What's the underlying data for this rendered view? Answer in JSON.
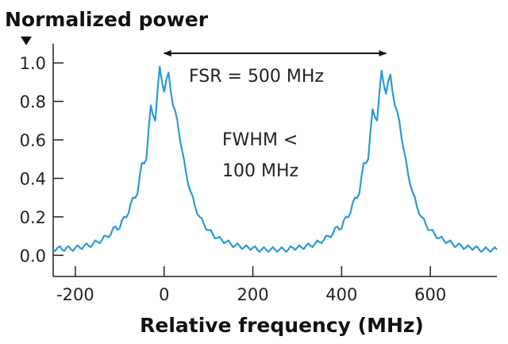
{
  "chart_data": {
    "type": "line",
    "title": "",
    "ylabel": "Normalized power",
    "xlabel": "Relative frequency (MHz)",
    "xlim": [
      -250,
      750
    ],
    "ylim": [
      -0.11,
      1.1
    ],
    "xticks": [
      -200,
      0,
      200,
      400,
      600
    ],
    "yticks": [
      0.0,
      0.2,
      0.4,
      0.6,
      0.8,
      1.0
    ],
    "ytick_labels": [
      "0.0",
      "0.2",
      "0.4",
      "0.6",
      "0.8",
      "1.0"
    ],
    "xtick_labels": [
      "-200",
      "0",
      "200",
      "400",
      "600"
    ],
    "grid": false,
    "series_color": "#2a9ad8",
    "series": [
      {
        "x": [
          -250,
          -240,
          -230,
          -220,
          -210,
          -200,
          -190,
          -180,
          -170,
          -160,
          -150,
          -140,
          -130,
          -120,
          -110,
          -100,
          -90,
          -80,
          -70,
          -60,
          -50,
          -40,
          -30,
          -20,
          -10,
          0,
          10,
          20,
          30,
          40,
          50,
          60,
          70,
          80,
          90,
          100,
          110,
          120,
          130,
          140,
          150,
          160,
          170,
          180,
          190,
          200,
          210,
          220,
          230,
          240,
          250,
          260,
          270,
          280,
          290,
          300,
          310,
          320,
          330,
          340,
          350,
          360,
          370,
          380,
          390,
          400,
          410,
          420,
          430,
          440,
          450,
          460,
          470,
          480,
          490,
          500,
          510,
          520,
          530,
          540,
          550,
          560,
          570,
          580,
          590,
          600,
          610,
          620,
          630,
          640,
          650,
          660,
          670,
          680,
          690,
          700,
          710,
          720,
          730,
          740,
          750
        ],
        "y": [
          0.03,
          0.04,
          0.03,
          0.04,
          0.03,
          0.04,
          0.04,
          0.05,
          0.05,
          0.06,
          0.07,
          0.08,
          0.1,
          0.11,
          0.15,
          0.14,
          0.2,
          0.22,
          0.3,
          0.32,
          0.48,
          0.5,
          0.78,
          0.7,
          0.98,
          0.85,
          0.95,
          0.78,
          0.7,
          0.55,
          0.42,
          0.33,
          0.25,
          0.2,
          0.16,
          0.13,
          0.11,
          0.09,
          0.08,
          0.07,
          0.06,
          0.05,
          0.05,
          0.04,
          0.04,
          0.04,
          0.03,
          0.03,
          0.03,
          0.03,
          0.03,
          0.03,
          0.03,
          0.03,
          0.04,
          0.04,
          0.04,
          0.05,
          0.05,
          0.06,
          0.07,
          0.08,
          0.1,
          0.11,
          0.15,
          0.14,
          0.2,
          0.22,
          0.3,
          0.32,
          0.48,
          0.5,
          0.76,
          0.7,
          0.96,
          0.84,
          0.94,
          0.78,
          0.7,
          0.55,
          0.42,
          0.33,
          0.25,
          0.2,
          0.16,
          0.13,
          0.11,
          0.09,
          0.08,
          0.07,
          0.06,
          0.05,
          0.05,
          0.04,
          0.04,
          0.04,
          0.03,
          0.03,
          0.03,
          0.03,
          0.03
        ]
      }
    ],
    "annotations": {
      "fsr_label": "FSR = 500 MHz",
      "fsr_arrow": {
        "from": 0,
        "to": 500,
        "y": 1.05
      },
      "fwhm_line1": "FWHM <",
      "fwhm_line2": "100 MHz"
    }
  }
}
